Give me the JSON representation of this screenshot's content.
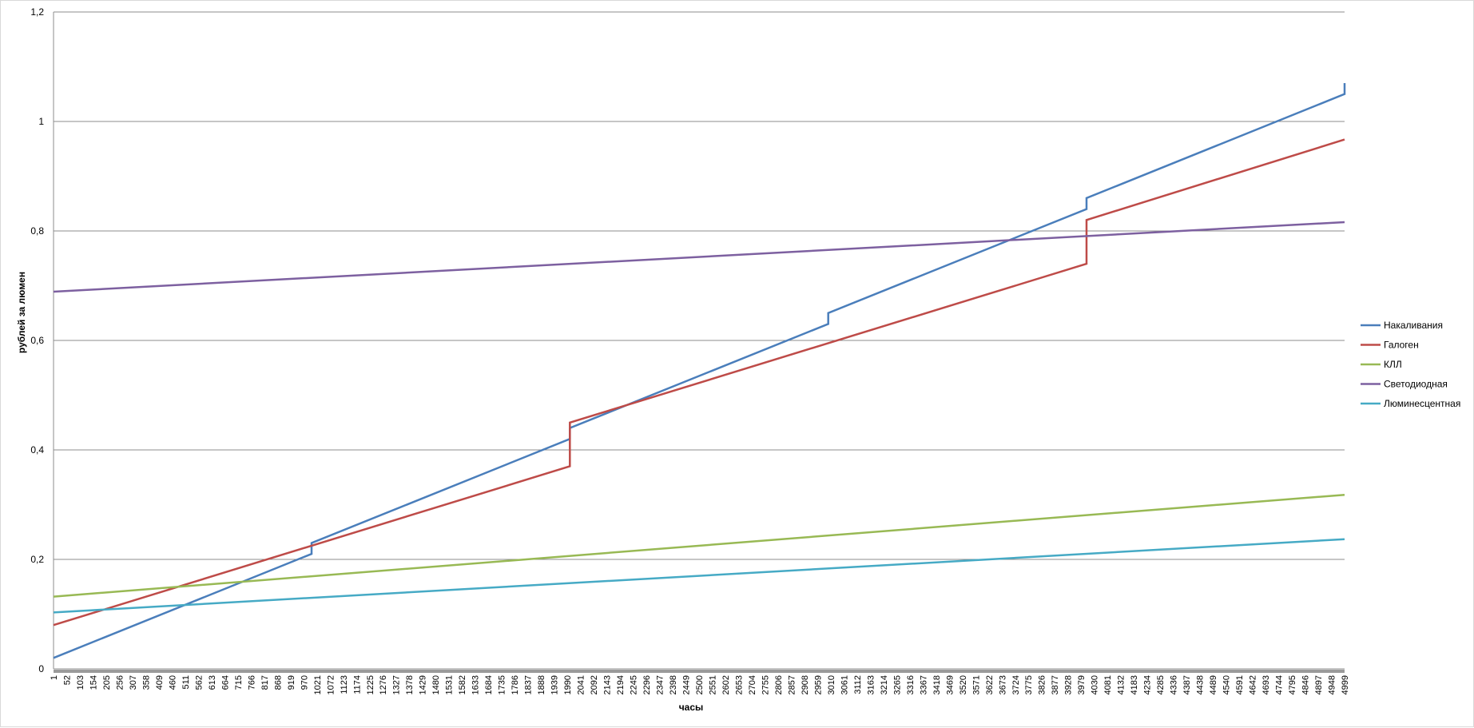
{
  "chart_data": {
    "type": "line",
    "title": "",
    "xlabel": "часы",
    "ylabel": "рублей за люмен",
    "ylim": [
      0,
      1.2
    ],
    "yticks": [
      0,
      0.2,
      0.4,
      0.6,
      0.8,
      1,
      1.2
    ],
    "ytick_labels": [
      "0",
      "0,2",
      "0,4",
      "0,6",
      "0,8",
      "1",
      "1,2"
    ],
    "xlim": [
      1,
      4999
    ],
    "xticks": [
      1,
      52,
      103,
      154,
      205,
      256,
      307,
      358,
      409,
      460,
      511,
      562,
      613,
      664,
      715,
      766,
      817,
      868,
      919,
      970,
      1021,
      1072,
      1123,
      1174,
      1225,
      1276,
      1327,
      1378,
      1429,
      1480,
      1531,
      1582,
      1633,
      1684,
      1735,
      1786,
      1837,
      1888,
      1939,
      1990,
      2041,
      2092,
      2143,
      2194,
      2245,
      2296,
      2347,
      2398,
      2449,
      2500,
      2551,
      2602,
      2653,
      2704,
      2755,
      2806,
      2857,
      2908,
      2959,
      3010,
      3061,
      3112,
      3163,
      3214,
      3265,
      3316,
      3367,
      3418,
      3469,
      3520,
      3571,
      3622,
      3673,
      3724,
      3775,
      3826,
      3877,
      3928,
      3979,
      4030,
      4081,
      4132,
      4183,
      4234,
      4285,
      4336,
      4387,
      4438,
      4489,
      4540,
      4591,
      4642,
      4693,
      4744,
      4795,
      4846,
      4897,
      4948,
      4999
    ],
    "grid": true,
    "legend_position": "right",
    "series": [
      {
        "name": "Накаливания",
        "color": "#4a7ebb",
        "points": [
          [
            1,
            0.02
          ],
          [
            1000,
            0.21
          ],
          [
            1000,
            0.23
          ],
          [
            2000,
            0.42
          ],
          [
            2000,
            0.44
          ],
          [
            3000,
            0.63
          ],
          [
            3000,
            0.65
          ],
          [
            4000,
            0.84
          ],
          [
            4000,
            0.86
          ],
          [
            4999,
            1.05
          ],
          [
            4999,
            1.07
          ]
        ]
      },
      {
        "name": "Галоген",
        "color": "#be4b48",
        "points": [
          [
            1,
            0.08
          ],
          [
            2000,
            0.37
          ],
          [
            2000,
            0.45
          ],
          [
            4000,
            0.74
          ],
          [
            4000,
            0.82
          ],
          [
            4999,
            0.967
          ]
        ]
      },
      {
        "name": "КЛЛ",
        "color": "#98b954",
        "points": [
          [
            1,
            0.132
          ],
          [
            4999,
            0.318
          ]
        ]
      },
      {
        "name": "Светодиодная",
        "color": "#7d60a0",
        "points": [
          [
            1,
            0.689
          ],
          [
            4999,
            0.816
          ]
        ]
      },
      {
        "name": "Люминесцентная",
        "color": "#46aac5",
        "points": [
          [
            1,
            0.103
          ],
          [
            4999,
            0.237
          ]
        ]
      }
    ]
  }
}
